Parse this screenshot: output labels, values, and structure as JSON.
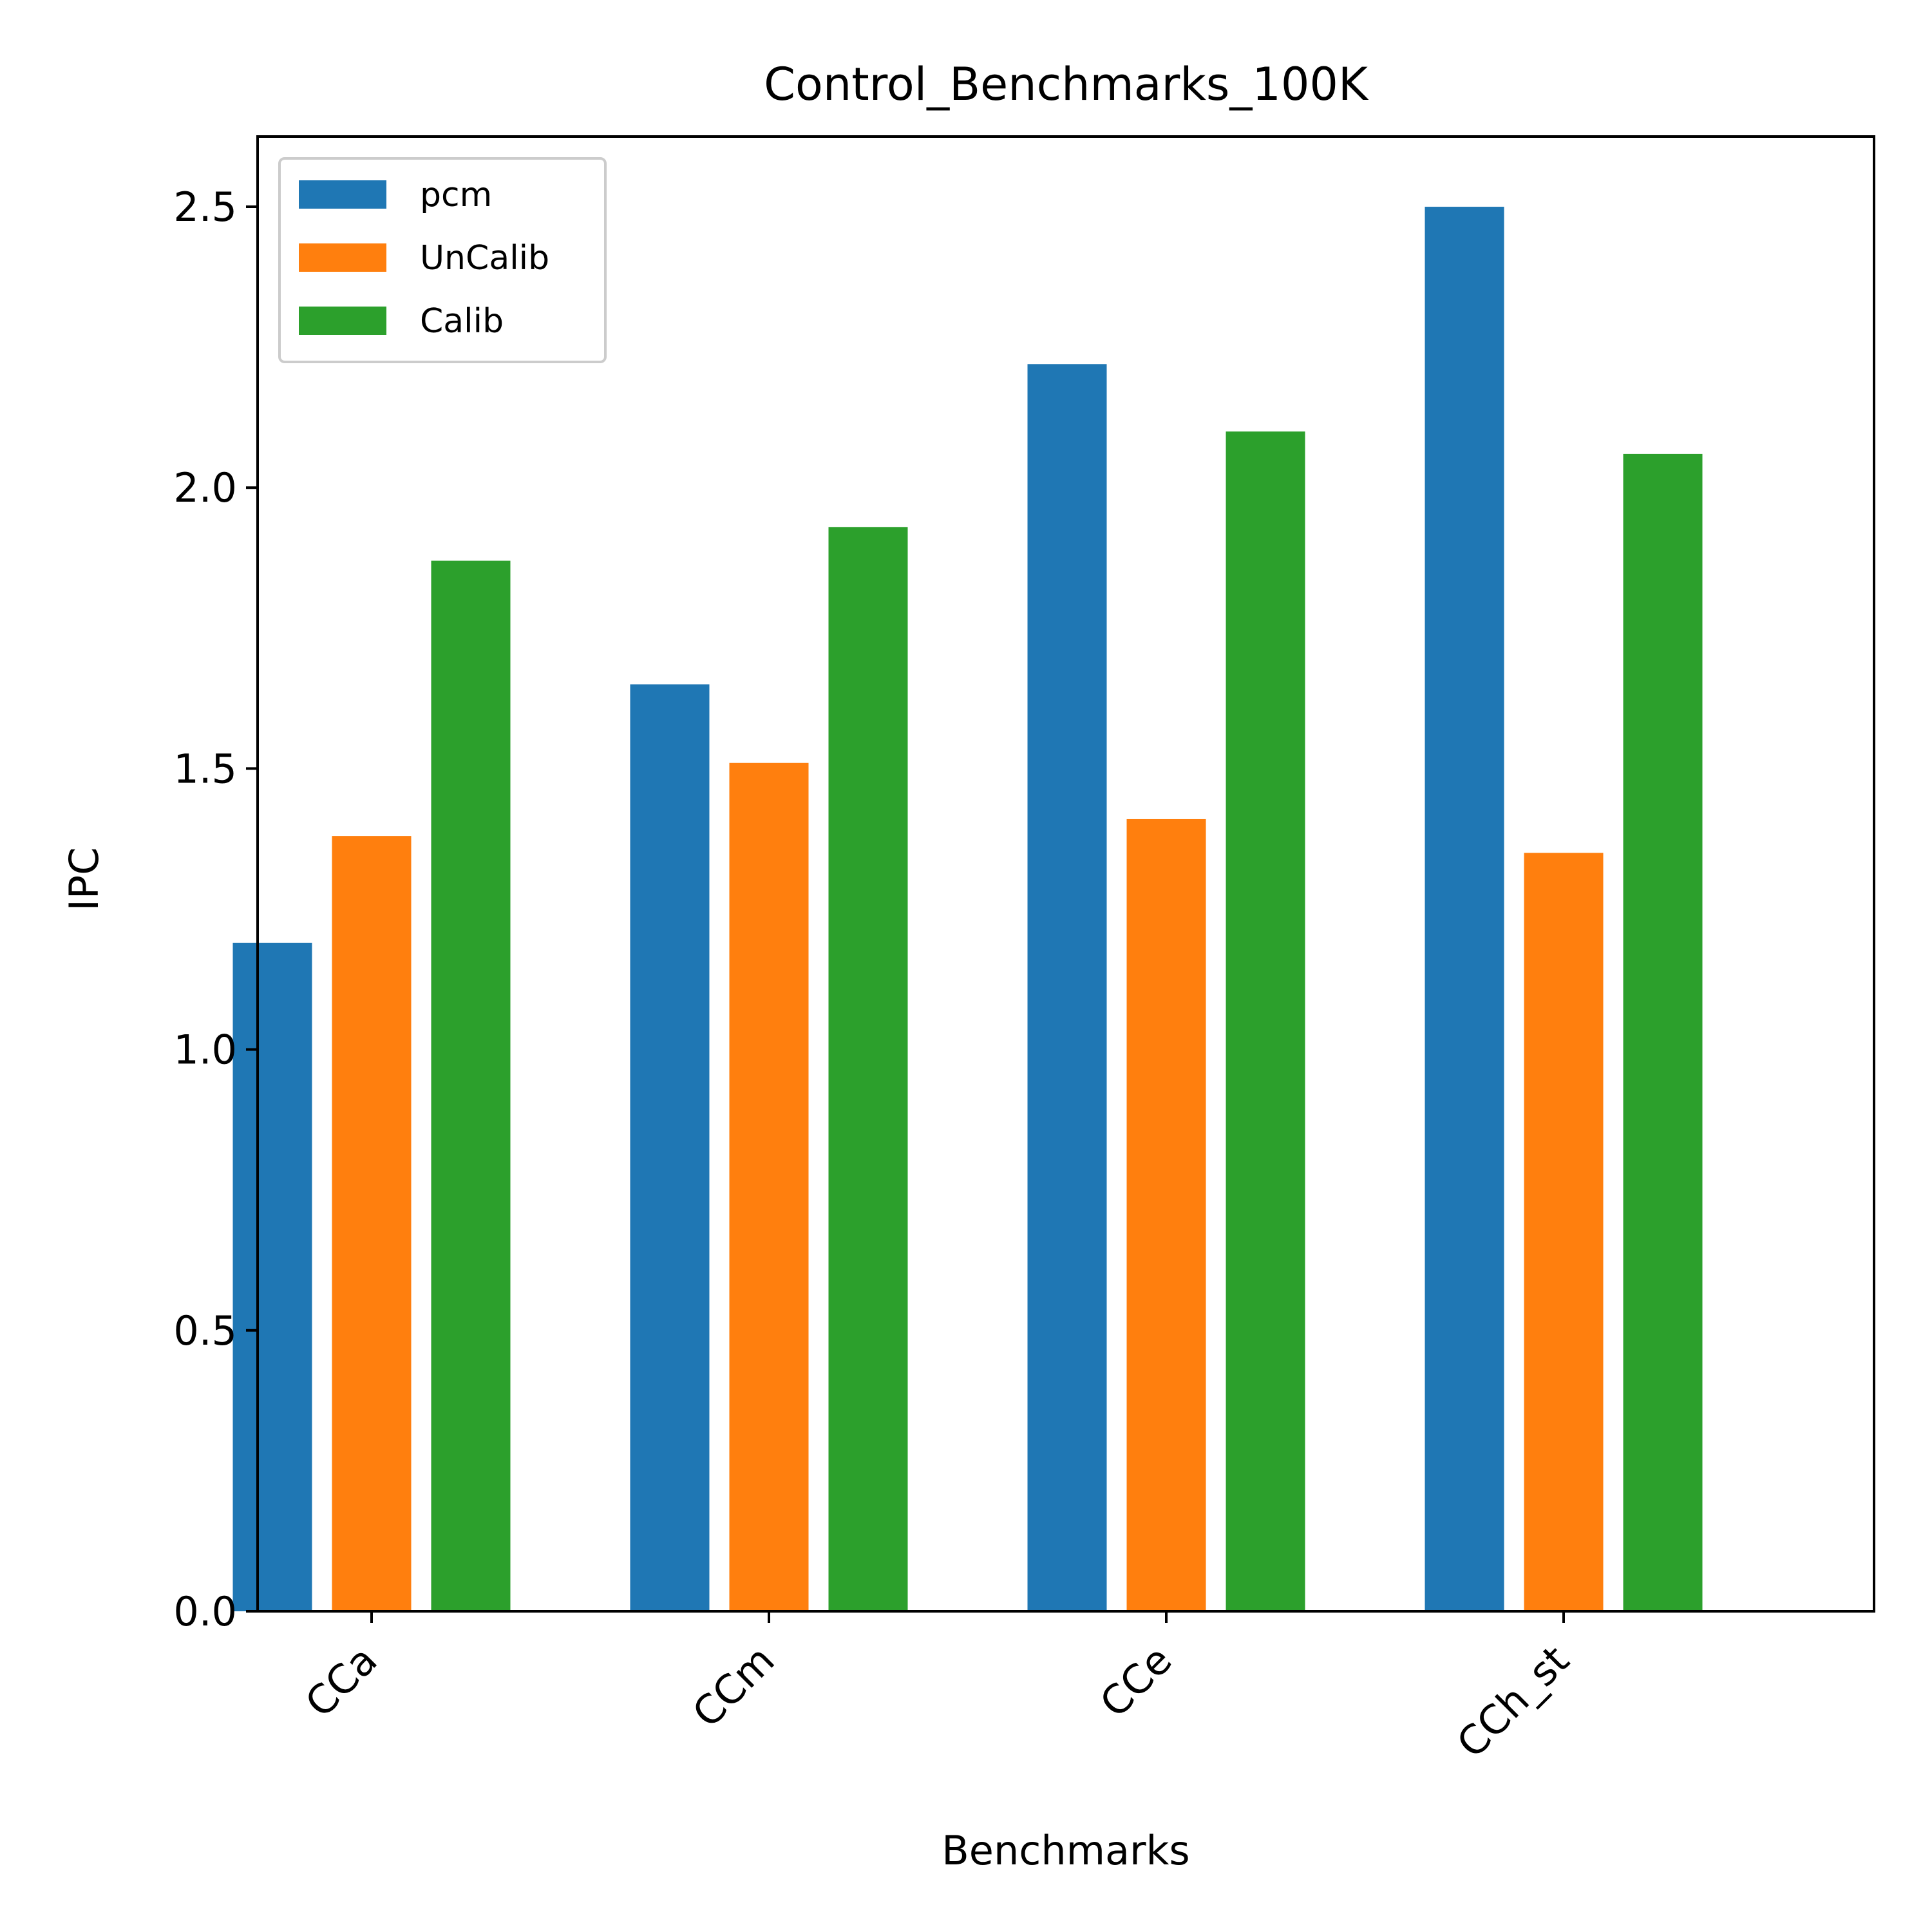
{
  "chart_data": {
    "type": "bar",
    "title": "Control_Benchmarks_100K",
    "xlabel": "Benchmarks",
    "ylabel": "IPC",
    "categories": [
      "CCa",
      "CCm",
      "CCe",
      "CCh_st"
    ],
    "series": [
      {
        "name": "pcm",
        "color": "#1f77b4",
        "values": [
          1.19,
          1.65,
          2.22,
          2.5
        ]
      },
      {
        "name": "UnCalib",
        "color": "#ff7f0e",
        "values": [
          1.38,
          1.51,
          1.41,
          1.35
        ]
      },
      {
        "name": "Calib",
        "color": "#2ca02c",
        "values": [
          1.87,
          1.93,
          2.1,
          2.06
        ]
      }
    ],
    "ylim": [
      0,
      2.625
    ],
    "yticks": [
      "0.0",
      "0.5",
      "1.0",
      "1.5",
      "2.0",
      "2.5"
    ],
    "legend": "top-left",
    "grid": false
  }
}
